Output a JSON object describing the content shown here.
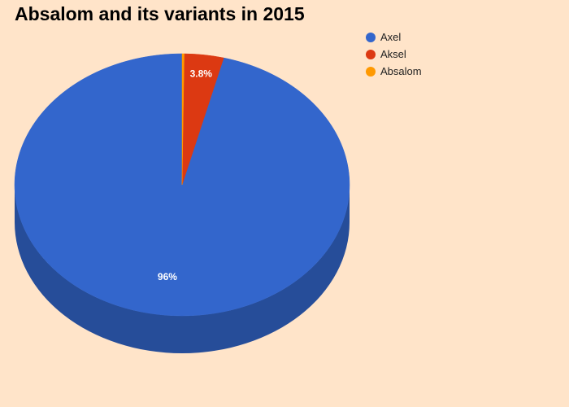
{
  "chart_data": {
    "type": "pie",
    "title": "Absalom and its variants in 2015",
    "is_3d": true,
    "legend_position": "top-right",
    "slices": [
      {
        "name": "Axel",
        "value": 96,
        "label": "96%",
        "color": "#3366cc",
        "side_color": "#264d99"
      },
      {
        "name": "Aksel",
        "value": 3.8,
        "label": "3.8%",
        "color": "#dc3912",
        "side_color": "#a52b0e"
      },
      {
        "name": "Absalom",
        "value": 0.2,
        "label": "",
        "color": "#ff9900",
        "side_color": "#bf7300"
      }
    ]
  }
}
